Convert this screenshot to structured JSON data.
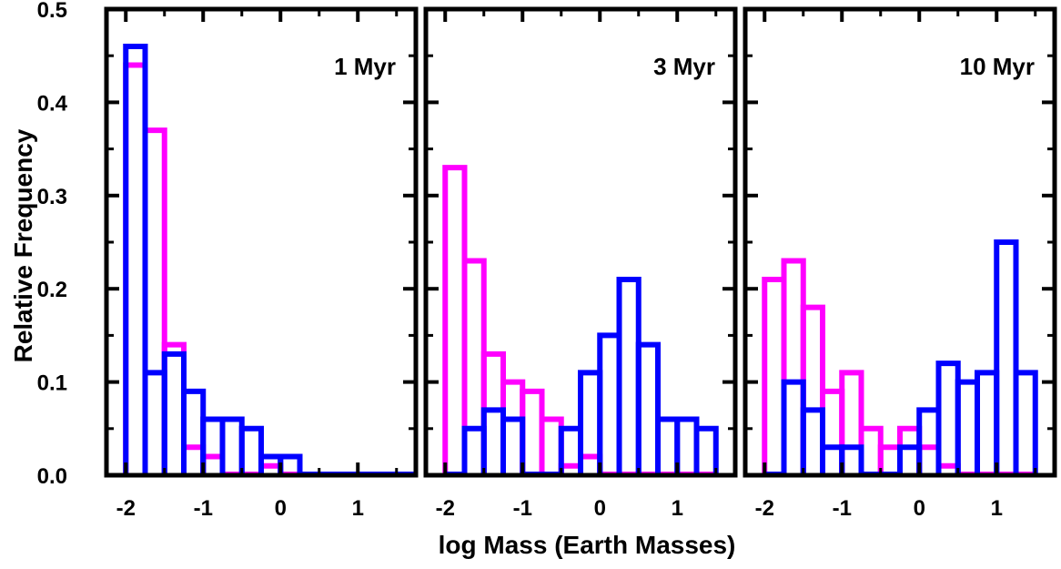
{
  "chart_data": [
    {
      "type": "histogram",
      "title": "1 Myr",
      "xlabel": "log Mass (Earth Masses)",
      "ylabel": "Relative Frequency",
      "xlim": [
        -2.25,
        1.75
      ],
      "ylim": [
        0,
        0.5
      ],
      "bin_width": 0.25,
      "grid": false,
      "series": [
        {
          "color": "#ff00ff",
          "bins": [
            {
              "x0": -2.0,
              "x1": -1.75,
              "y": 0.44
            },
            {
              "x0": -1.75,
              "x1": -1.5,
              "y": 0.37
            },
            {
              "x0": -1.5,
              "x1": -1.25,
              "y": 0.14
            },
            {
              "x0": -1.25,
              "x1": -1.0,
              "y": 0.03
            },
            {
              "x0": -1.0,
              "x1": -0.75,
              "y": 0.02
            },
            {
              "x0": -0.75,
              "x1": -0.5,
              "y": 0.0
            },
            {
              "x0": -0.5,
              "x1": -0.25,
              "y": 0.0
            },
            {
              "x0": -0.25,
              "x1": 0.0,
              "y": 0.01
            },
            {
              "x0": 0.0,
              "x1": 0.25,
              "y": 0.0
            },
            {
              "x0": 0.25,
              "x1": 0.5,
              "y": 0.0
            },
            {
              "x0": 0.5,
              "x1": 0.75,
              "y": 0.0
            },
            {
              "x0": 0.75,
              "x1": 1.0,
              "y": 0.0
            },
            {
              "x0": 1.0,
              "x1": 1.25,
              "y": 0.0
            },
            {
              "x0": 1.25,
              "x1": 1.5,
              "y": 0.0
            },
            {
              "x0": 1.5,
              "x1": 1.75,
              "y": 0.0
            }
          ]
        },
        {
          "color": "#0000ff",
          "bins": [
            {
              "x0": -2.0,
              "x1": -1.75,
              "y": 0.46
            },
            {
              "x0": -1.75,
              "x1": -1.5,
              "y": 0.11
            },
            {
              "x0": -1.5,
              "x1": -1.25,
              "y": 0.13
            },
            {
              "x0": -1.25,
              "x1": -1.0,
              "y": 0.09
            },
            {
              "x0": -1.0,
              "x1": -0.75,
              "y": 0.06
            },
            {
              "x0": -0.75,
              "x1": -0.5,
              "y": 0.06
            },
            {
              "x0": -0.5,
              "x1": -0.25,
              "y": 0.05
            },
            {
              "x0": -0.25,
              "x1": 0.0,
              "y": 0.02
            },
            {
              "x0": 0.0,
              "x1": 0.25,
              "y": 0.02
            },
            {
              "x0": 0.25,
              "x1": 0.5,
              "y": 0.0
            },
            {
              "x0": 0.5,
              "x1": 0.75,
              "y": 0.0
            },
            {
              "x0": 0.75,
              "x1": 1.0,
              "y": 0.0
            },
            {
              "x0": 1.0,
              "x1": 1.25,
              "y": 0.0
            },
            {
              "x0": 1.25,
              "x1": 1.5,
              "y": 0.0
            },
            {
              "x0": 1.5,
              "x1": 1.75,
              "y": 0.0
            }
          ]
        }
      ]
    },
    {
      "type": "histogram",
      "title": "3 Myr",
      "xlabel": "log Mass (Earth Masses)",
      "ylabel": "Relative Frequency",
      "xlim": [
        -2.25,
        1.75
      ],
      "ylim": [
        0,
        0.5
      ],
      "bin_width": 0.25,
      "grid": false,
      "series": [
        {
          "color": "#ff00ff",
          "bins": [
            {
              "x0": -2.0,
              "x1": -1.75,
              "y": 0.33
            },
            {
              "x0": -1.75,
              "x1": -1.5,
              "y": 0.23
            },
            {
              "x0": -1.5,
              "x1": -1.25,
              "y": 0.13
            },
            {
              "x0": -1.25,
              "x1": -1.0,
              "y": 0.1
            },
            {
              "x0": -1.0,
              "x1": -0.75,
              "y": 0.09
            },
            {
              "x0": -0.75,
              "x1": -0.5,
              "y": 0.06
            },
            {
              "x0": -0.5,
              "x1": -0.25,
              "y": 0.01
            },
            {
              "x0": -0.25,
              "x1": 0.0,
              "y": 0.02
            },
            {
              "x0": 0.0,
              "x1": 0.25,
              "y": 0.0
            },
            {
              "x0": 0.25,
              "x1": 0.5,
              "y": 0.0
            },
            {
              "x0": 0.5,
              "x1": 0.75,
              "y": 0.0
            },
            {
              "x0": 0.75,
              "x1": 1.0,
              "y": 0.0
            },
            {
              "x0": 1.0,
              "x1": 1.25,
              "y": 0.0
            },
            {
              "x0": 1.25,
              "x1": 1.5,
              "y": 0.0
            }
          ]
        },
        {
          "color": "#0000ff",
          "bins": [
            {
              "x0": -2.0,
              "x1": -1.75,
              "y": 0.0
            },
            {
              "x0": -1.75,
              "x1": -1.5,
              "y": 0.05
            },
            {
              "x0": -1.5,
              "x1": -1.25,
              "y": 0.07
            },
            {
              "x0": -1.25,
              "x1": -1.0,
              "y": 0.06
            },
            {
              "x0": -1.0,
              "x1": -0.75,
              "y": 0.0
            },
            {
              "x0": -0.75,
              "x1": -0.5,
              "y": 0.0
            },
            {
              "x0": -0.5,
              "x1": -0.25,
              "y": 0.05
            },
            {
              "x0": -0.25,
              "x1": 0.0,
              "y": 0.11
            },
            {
              "x0": 0.0,
              "x1": 0.25,
              "y": 0.15
            },
            {
              "x0": 0.25,
              "x1": 0.5,
              "y": 0.21
            },
            {
              "x0": 0.5,
              "x1": 0.75,
              "y": 0.14
            },
            {
              "x0": 0.75,
              "x1": 1.0,
              "y": 0.06
            },
            {
              "x0": 1.0,
              "x1": 1.25,
              "y": 0.06
            },
            {
              "x0": 1.25,
              "x1": 1.5,
              "y": 0.05
            }
          ]
        }
      ]
    },
    {
      "type": "histogram",
      "title": "10 Myr",
      "xlabel": "log Mass (Earth Masses)",
      "ylabel": "Relative Frequency",
      "xlim": [
        -2.25,
        1.75
      ],
      "ylim": [
        0,
        0.5
      ],
      "bin_width": 0.25,
      "grid": false,
      "series": [
        {
          "color": "#ff00ff",
          "bins": [
            {
              "x0": -2.0,
              "x1": -1.75,
              "y": 0.21
            },
            {
              "x0": -1.75,
              "x1": -1.5,
              "y": 0.23
            },
            {
              "x0": -1.5,
              "x1": -1.25,
              "y": 0.18
            },
            {
              "x0": -1.25,
              "x1": -1.0,
              "y": 0.09
            },
            {
              "x0": -1.0,
              "x1": -0.75,
              "y": 0.11
            },
            {
              "x0": -0.75,
              "x1": -0.5,
              "y": 0.05
            },
            {
              "x0": -0.5,
              "x1": -0.25,
              "y": 0.03
            },
            {
              "x0": -0.25,
              "x1": 0.0,
              "y": 0.05
            },
            {
              "x0": 0.0,
              "x1": 0.25,
              "y": 0.03
            },
            {
              "x0": 0.25,
              "x1": 0.5,
              "y": 0.01
            },
            {
              "x0": 0.5,
              "x1": 0.75,
              "y": 0.0
            },
            {
              "x0": 0.75,
              "x1": 1.0,
              "y": 0.0
            },
            {
              "x0": 1.0,
              "x1": 1.25,
              "y": 0.0
            },
            {
              "x0": 1.25,
              "x1": 1.5,
              "y": 0.0
            }
          ]
        },
        {
          "color": "#0000ff",
          "bins": [
            {
              "x0": -2.0,
              "x1": -1.75,
              "y": 0.0
            },
            {
              "x0": -1.75,
              "x1": -1.5,
              "y": 0.1
            },
            {
              "x0": -1.5,
              "x1": -1.25,
              "y": 0.07
            },
            {
              "x0": -1.25,
              "x1": -1.0,
              "y": 0.03
            },
            {
              "x0": -1.0,
              "x1": -0.75,
              "y": 0.03
            },
            {
              "x0": -0.75,
              "x1": -0.5,
              "y": 0.0
            },
            {
              "x0": -0.5,
              "x1": -0.25,
              "y": 0.0
            },
            {
              "x0": -0.25,
              "x1": 0.0,
              "y": 0.03
            },
            {
              "x0": 0.0,
              "x1": 0.25,
              "y": 0.07
            },
            {
              "x0": 0.25,
              "x1": 0.5,
              "y": 0.12
            },
            {
              "x0": 0.5,
              "x1": 0.75,
              "y": 0.1
            },
            {
              "x0": 0.75,
              "x1": 1.0,
              "y": 0.11
            },
            {
              "x0": 1.0,
              "x1": 1.25,
              "y": 0.25
            },
            {
              "x0": 1.25,
              "x1": 1.5,
              "y": 0.11
            }
          ]
        }
      ]
    }
  ],
  "axes": {
    "y_ticks": [
      0.0,
      0.1,
      0.2,
      0.3,
      0.4,
      0.5
    ],
    "y_tick_labels": [
      "0.0",
      "0.1",
      "0.2",
      "0.3",
      "0.4",
      "0.5"
    ],
    "x_ticks": [
      -2,
      -1,
      0,
      1
    ],
    "x_tick_labels": [
      "-2",
      "-1",
      "0",
      "1"
    ],
    "x_title": "log Mass (Earth Masses)",
    "y_title": "Relative Frequency"
  }
}
